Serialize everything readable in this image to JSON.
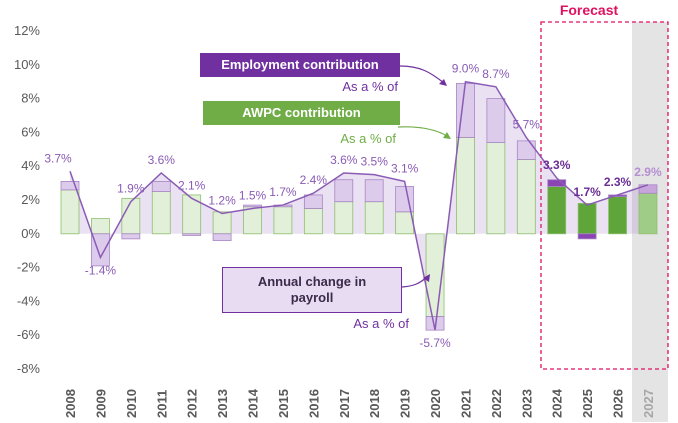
{
  "chart_data": {
    "type": "stacked_bar_line",
    "forecast_label": "Forecast",
    "categories": [
      "2008",
      "2009",
      "2010",
      "2011",
      "2012",
      "2013",
      "2014",
      "2015",
      "2016",
      "2017",
      "2018",
      "2019",
      "2020",
      "2021",
      "2022",
      "2023",
      "2024",
      "2025",
      "2026",
      "2027"
    ],
    "series": [
      {
        "name": "AWPC contribution",
        "type": "bar",
        "color": "#70ad47",
        "colors": [
          "#e2efd9",
          "#e2efd9",
          "#e2efd9",
          "#e2efd9",
          "#e2efd9",
          "#e2efd9",
          "#e2efd9",
          "#e2efd9",
          "#e2efd9",
          "#e2efd9",
          "#e2efd9",
          "#e2efd9",
          "#e2efd9",
          "#e2efd9",
          "#e2efd9",
          "#e2efd9",
          "#5fa53a",
          "#5fa53a",
          "#5fa53a",
          "#9fcc87"
        ],
        "values": [
          2.6,
          0.9,
          2.1,
          2.5,
          2.3,
          1.3,
          1.6,
          1.6,
          1.5,
          1.9,
          1.9,
          1.3,
          -4.9,
          5.7,
          5.4,
          4.4,
          2.8,
          1.8,
          2.2,
          2.4
        ]
      },
      {
        "name": "Employment contribution",
        "type": "bar",
        "color": "#7030a0",
        "colors": [
          "#dccbea",
          "#dccbea",
          "#dccbea",
          "#dccbea",
          "#dccbea",
          "#dccbea",
          "#dccbea",
          "#dccbea",
          "#dccbea",
          "#dccbea",
          "#dccbea",
          "#dccbea",
          "#dccbea",
          "#dccbea",
          "#dccbea",
          "#dccbea",
          "#8a44b4",
          "#8a44b4",
          "#8a44b4",
          "#c7a4dc"
        ],
        "values": [
          0.5,
          -1.9,
          -0.3,
          0.6,
          -0.1,
          -0.4,
          0.1,
          0.1,
          0.8,
          1.3,
          1.3,
          1.5,
          -0.8,
          3.2,
          2.6,
          1.1,
          0.4,
          -0.3,
          0.1,
          0.5
        ]
      },
      {
        "name": "Annual change in payroll",
        "type": "line",
        "color": "#8a5bb5",
        "colors": [
          "#8a5bb5",
          "#8a5bb5",
          "#8a5bb5",
          "#8a5bb5",
          "#8a5bb5",
          "#8a5bb5",
          "#8a5bb5",
          "#8a5bb5",
          "#8a5bb5",
          "#8a5bb5",
          "#8a5bb5",
          "#8a5bb5",
          "#8a5bb5",
          "#8a5bb5",
          "#8a5bb5",
          "#8a5bb5",
          "#6a2d94",
          "#6a2d94",
          "#6a2d94",
          "#b58fd1"
        ],
        "values": [
          3.7,
          -1.4,
          1.9,
          3.6,
          2.1,
          1.2,
          1.5,
          1.7,
          2.4,
          3.6,
          3.5,
          3.1,
          -5.7,
          9.0,
          8.7,
          5.7,
          3.3,
          1.7,
          2.3,
          2.9
        ],
        "value_labels": [
          "3.7%",
          "-1.4%",
          "1.9%",
          "3.6%",
          "2.1%",
          "1.2%",
          "1.5%",
          "1.7%",
          "2.4%",
          "3.6%",
          "3.5%",
          "3.1%",
          "-5.7%",
          "9.0%",
          "8.7%",
          "5.7%",
          "3.3%",
          "1.7%",
          "2.3%",
          "2.9%"
        ]
      }
    ],
    "annotations": [
      "As a % of",
      "As a % of",
      "As a % of"
    ],
    "ylim": [
      -8,
      12
    ],
    "yticks": [
      {
        "value": -8,
        "label": "-8%"
      },
      {
        "value": -6,
        "label": "-6%"
      },
      {
        "value": -4,
        "label": "-4%"
      },
      {
        "value": -2,
        "label": "-2%"
      },
      {
        "value": 0,
        "label": "0%"
      },
      {
        "value": 2,
        "label": "2%"
      },
      {
        "value": 4,
        "label": "4%"
      },
      {
        "value": 6,
        "label": "6%"
      },
      {
        "value": 8,
        "label": "8%"
      },
      {
        "value": 10,
        "label": "10%"
      },
      {
        "value": 12,
        "label": "12%"
      }
    ],
    "grid": false
  }
}
